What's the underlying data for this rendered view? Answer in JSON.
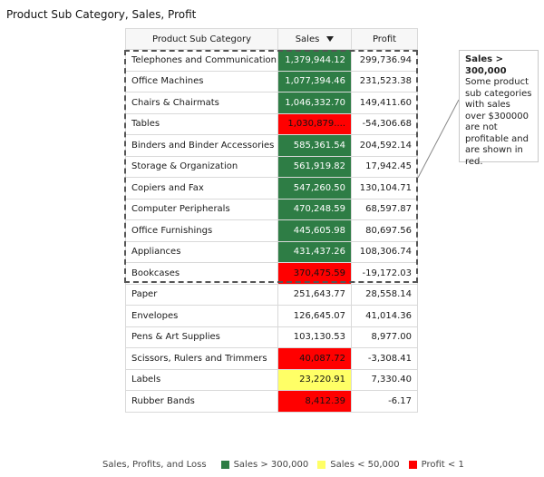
{
  "chart_data": {
    "type": "table",
    "title": "Product Sub Category, Sales, Profit",
    "columns": [
      "Product Sub Category",
      "Sales",
      "Profit"
    ],
    "sort": {
      "column": "Sales",
      "direction": "descending"
    },
    "rows": [
      {
        "category": "Telephones and Communication",
        "sales": "1,379,944.12",
        "profit": "299,736.94",
        "flag": "green"
      },
      {
        "category": "Office Machines",
        "sales": "1,077,394.46",
        "profit": "231,523.38",
        "flag": "green"
      },
      {
        "category": "Chairs & Chairmats",
        "sales": "1,046,332.70",
        "profit": "149,411.60",
        "flag": "green"
      },
      {
        "category": "Tables",
        "sales": "1,030,879....",
        "profit": "-54,306.68",
        "flag": "red"
      },
      {
        "category": "Binders and Binder Accessories",
        "sales": "585,361.54",
        "profit": "204,592.14",
        "flag": "green"
      },
      {
        "category": "Storage & Organization",
        "sales": "561,919.82",
        "profit": "17,942.45",
        "flag": "green"
      },
      {
        "category": "Copiers and Fax",
        "sales": "547,260.50",
        "profit": "130,104.71",
        "flag": "green"
      },
      {
        "category": "Computer Peripherals",
        "sales": "470,248.59",
        "profit": "68,597.87",
        "flag": "green"
      },
      {
        "category": "Office Furnishings",
        "sales": "445,605.98",
        "profit": "80,697.56",
        "flag": "green"
      },
      {
        "category": "Appliances",
        "sales": "431,437.26",
        "profit": "108,306.74",
        "flag": "green"
      },
      {
        "category": "Bookcases",
        "sales": "370,475.59",
        "profit": "-19,172.03",
        "flag": "red"
      },
      {
        "category": "Paper",
        "sales": "251,643.77",
        "profit": "28,558.14",
        "flag": "none"
      },
      {
        "category": "Envelopes",
        "sales": "126,645.07",
        "profit": "41,014.36",
        "flag": "none"
      },
      {
        "category": "Pens & Art Supplies",
        "sales": "103,130.53",
        "profit": "8,977.00",
        "flag": "none"
      },
      {
        "category": "Scissors, Rulers and Trimmers",
        "sales": "40,087.72",
        "profit": "-3,308.41",
        "flag": "red"
      },
      {
        "category": "Labels",
        "sales": "23,220.91",
        "profit": "7,330.40",
        "flag": "yellow"
      },
      {
        "category": "Rubber Bands",
        "sales": "8,412.39",
        "profit": "-6.17",
        "flag": "red"
      }
    ],
    "annotation": {
      "title": "Sales > 300,000",
      "text": "Some product sub categories with sales over $300000 are not profitable and are shown in red."
    },
    "legend": {
      "title": "Sales, Profits, and Loss",
      "items": [
        {
          "label": "Sales > 300,000",
          "color": "#2e7d45"
        },
        {
          "label": "Sales < 50,000",
          "color": "#ffff66"
        },
        {
          "label": "Profit < 1",
          "color": "#ff0000"
        }
      ]
    }
  }
}
